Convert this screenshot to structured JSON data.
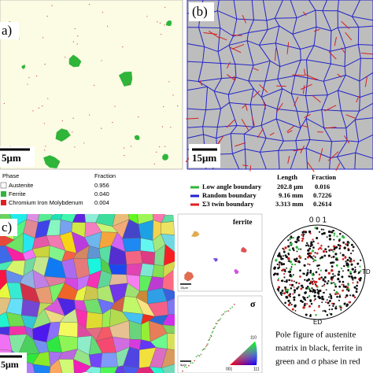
{
  "panel_a": {
    "label": "a)",
    "scale_bar": "5μm",
    "legend": {
      "header": [
        "Phase",
        "Fraction"
      ],
      "rows": [
        [
          "Austenite",
          "0.956"
        ],
        [
          "Ferrite",
          "0.040"
        ],
        [
          "Chromium Iron Molybdenum",
          "0.004"
        ]
      ]
    }
  },
  "panel_b": {
    "label": "(b)",
    "scale_bar": "15μm",
    "legend": {
      "header": [
        "Length",
        "Fraction"
      ],
      "rows": [
        [
          "Low angle boundary",
          "202.8 μm",
          "0.016"
        ],
        [
          "Random boundary",
          "9.16 mm",
          "0.7226"
        ],
        [
          "Σ3 twin boundary",
          "3.313 mm",
          "0.2614"
        ]
      ]
    }
  },
  "panel_c": {
    "label": "c)",
    "scale_bar": "5μm",
    "ferrite_map": {
      "label": "ferrite",
      "scale_bar": "15μm"
    },
    "sigma_map": {
      "label": "σ",
      "scale_bar": "5μm",
      "ipf_labels": [
        "110",
        "001",
        "111"
      ]
    },
    "pole_figure": {
      "title": "0 0 1",
      "right_label": "TD",
      "bottom_label": "ED",
      "caption": [
        "Pole figure of austenite",
        "matrix in black, ferrite in",
        "green and σ phase in red"
      ]
    }
  }
}
